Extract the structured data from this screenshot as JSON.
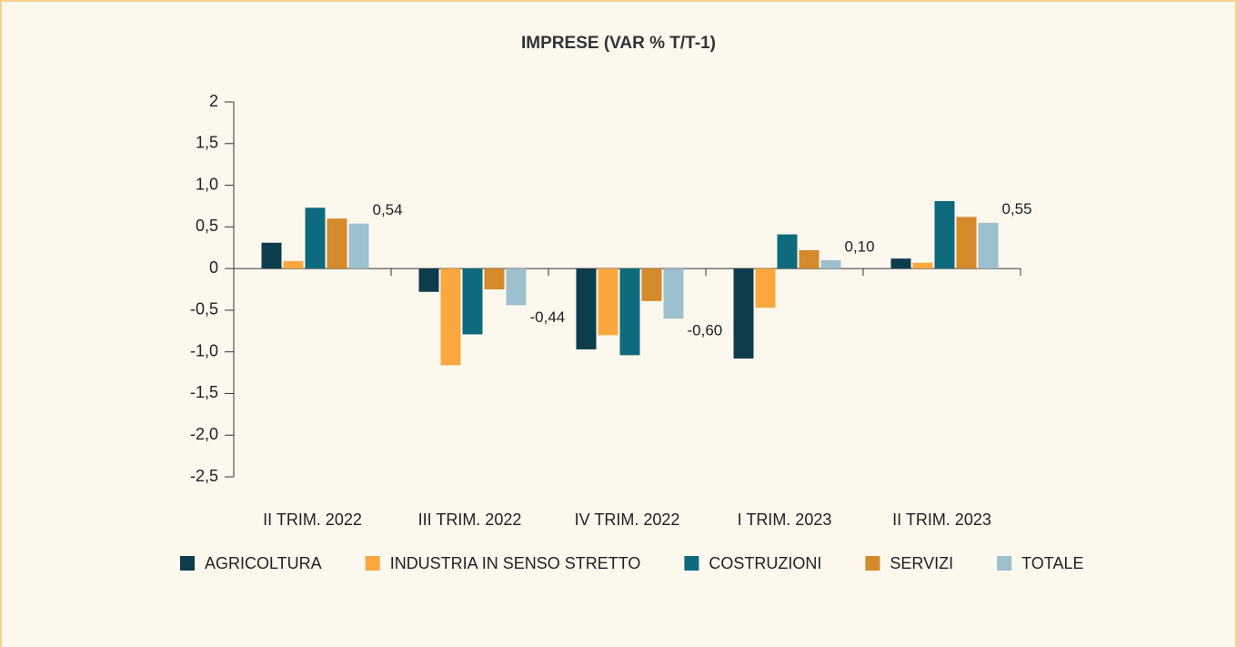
{
  "chart_data": {
    "type": "bar",
    "title": "IMPRESE (VAR % T/T-1)",
    "categories": [
      "II TRIM. 2022",
      "III TRIM. 2022",
      "IV TRIM. 2022",
      "I TRIM. 2023",
      "II TRIM. 2023"
    ],
    "series": [
      {
        "name": "AGRICOLTURA",
        "color": "#0d3d4d",
        "values": [
          0.31,
          -0.28,
          -0.97,
          -1.08,
          0.12
        ]
      },
      {
        "name": "INDUSTRIA IN SENSO STRETTO",
        "color": "#f9a73e",
        "values": [
          0.09,
          -1.16,
          -0.8,
          -0.47,
          0.07
        ]
      },
      {
        "name": "COSTRUZIONI",
        "color": "#0e6b7d",
        "values": [
          0.73,
          -0.79,
          -1.04,
          0.41,
          0.81
        ]
      },
      {
        "name": "SERVIZI",
        "color": "#d4892a",
        "values": [
          0.6,
          -0.25,
          -0.39,
          0.22,
          0.62
        ]
      },
      {
        "name": "TOTALE",
        "color": "#9dc0cf",
        "values": [
          0.54,
          -0.44,
          -0.6,
          0.1,
          0.55
        ],
        "value_labels": [
          "0,54",
          "-0,44",
          "-0,60",
          "0,10",
          "0,55"
        ]
      }
    ],
    "ylim": [
      -2.5,
      2
    ],
    "yticks": [
      2,
      {
        "value": 1.5,
        "label": "1,5"
      },
      {
        "value": 1.0,
        "label": "1,0"
      },
      {
        "value": 0.5,
        "label": "0,5"
      },
      0,
      {
        "value": -0.5,
        "label": "-0,5"
      },
      {
        "value": -1.0,
        "label": "-1,0"
      },
      {
        "value": -1.5,
        "label": "-1,5"
      },
      {
        "value": -2.0,
        "label": "-2,0"
      },
      {
        "value": -2.5,
        "label": "-2,5"
      }
    ],
    "legend": "bottom"
  }
}
